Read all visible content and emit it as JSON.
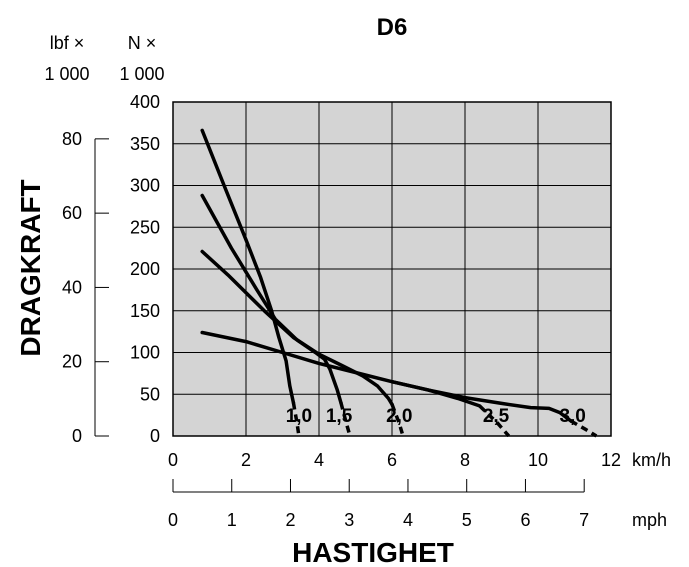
{
  "chart_data": {
    "type": "line",
    "title": "D6",
    "xlabel": "HASTIGHET",
    "ylabel": "DRAGKRAFT",
    "x_unit_primary": "km/h",
    "x_unit_secondary": "mph",
    "y_unit_primary_line1": "N ×",
    "y_unit_primary_line2": "1 000",
    "y_unit_secondary_line1": "lbf ×",
    "y_unit_secondary_line2": "1 000",
    "xlim": [
      0,
      12
    ],
    "ylim": [
      0,
      400
    ],
    "x_ticks": [
      0,
      2,
      4,
      6,
      8,
      10,
      12
    ],
    "x_tick_labels": [
      "0",
      "2",
      "4",
      "6",
      "8",
      "10",
      "12"
    ],
    "y_ticks": [
      0,
      50,
      100,
      150,
      200,
      250,
      300,
      350,
      400
    ],
    "y_tick_labels": [
      "0",
      "50",
      "100",
      "150",
      "200",
      "250",
      "300",
      "350",
      "400"
    ],
    "mph_ticks": [
      0,
      1,
      2,
      3,
      4,
      5,
      6,
      7
    ],
    "mph_tick_labels": [
      "0",
      "1",
      "2",
      "3",
      "4",
      "5",
      "6",
      "7"
    ],
    "lbf_ticks": [
      0,
      20,
      40,
      60,
      80
    ],
    "lbf_tick_labels": [
      "0",
      "20",
      "40",
      "60",
      "80"
    ],
    "grid": true,
    "plot_background": "#d4d4d4",
    "line_color": "#000000",
    "series": [
      {
        "name": "1,0",
        "points": [
          [
            0.8,
            366
          ],
          [
            1.4,
            300
          ],
          [
            2.0,
            235
          ],
          [
            2.4,
            190
          ],
          [
            2.7,
            150
          ],
          [
            2.9,
            118
          ],
          [
            3.1,
            90
          ],
          [
            3.2,
            60
          ],
          [
            3.3,
            40
          ]
        ],
        "dashed_tail": [
          [
            3.3,
            40
          ],
          [
            3.4,
            15
          ],
          [
            3.45,
            0
          ]
        ]
      },
      {
        "name": "1,5",
        "points": [
          [
            0.8,
            288
          ],
          [
            1.6,
            225
          ],
          [
            2.3,
            175
          ],
          [
            2.8,
            140
          ],
          [
            3.4,
            115
          ],
          [
            3.9,
            100
          ],
          [
            4.15,
            92
          ],
          [
            4.3,
            80
          ],
          [
            4.5,
            55
          ],
          [
            4.6,
            40
          ]
        ],
        "dashed_tail": [
          [
            4.6,
            40
          ],
          [
            4.75,
            15
          ],
          [
            4.85,
            0
          ]
        ]
      },
      {
        "name": "2,0",
        "points": [
          [
            0.8,
            221
          ],
          [
            1.5,
            193
          ],
          [
            2.5,
            150
          ],
          [
            3.3,
            118
          ],
          [
            4.0,
            98
          ],
          [
            4.6,
            85
          ],
          [
            5.2,
            72
          ],
          [
            5.6,
            60
          ],
          [
            5.9,
            45
          ],
          [
            6.0,
            38
          ]
        ],
        "dashed_tail": [
          [
            6.0,
            38
          ],
          [
            6.2,
            15
          ],
          [
            6.3,
            0
          ]
        ]
      },
      {
        "name": "2,5",
        "points": [
          [
            0.8,
            124
          ],
          [
            2.0,
            113
          ],
          [
            3.0,
            100
          ],
          [
            4.0,
            87
          ],
          [
            5.0,
            76
          ],
          [
            6.0,
            65
          ],
          [
            7.0,
            55
          ],
          [
            7.8,
            45
          ],
          [
            8.4,
            36
          ]
        ],
        "dashed_tail": [
          [
            8.4,
            36
          ],
          [
            8.9,
            15
          ],
          [
            9.2,
            0
          ]
        ]
      },
      {
        "name": "3,0",
        "points": [
          [
            6.0,
            65
          ],
          [
            7.0,
            55
          ],
          [
            8.0,
            46
          ],
          [
            9.0,
            39
          ],
          [
            9.8,
            34
          ],
          [
            10.3,
            33
          ],
          [
            10.6,
            28
          ],
          [
            10.9,
            18
          ]
        ],
        "dashed_tail": [
          [
            10.9,
            18
          ],
          [
            11.3,
            8
          ],
          [
            11.6,
            0
          ]
        ]
      }
    ],
    "curve_labels": [
      {
        "text": "1,0",
        "x": 3.45,
        "y": 25
      },
      {
        "text": "1,5",
        "x": 4.55,
        "y": 25
      },
      {
        "text": "2,0",
        "x": 6.2,
        "y": 25
      },
      {
        "text": "2,5",
        "x": 8.85,
        "y": 25
      },
      {
        "text": "3,0",
        "x": 10.95,
        "y": 25
      }
    ]
  }
}
